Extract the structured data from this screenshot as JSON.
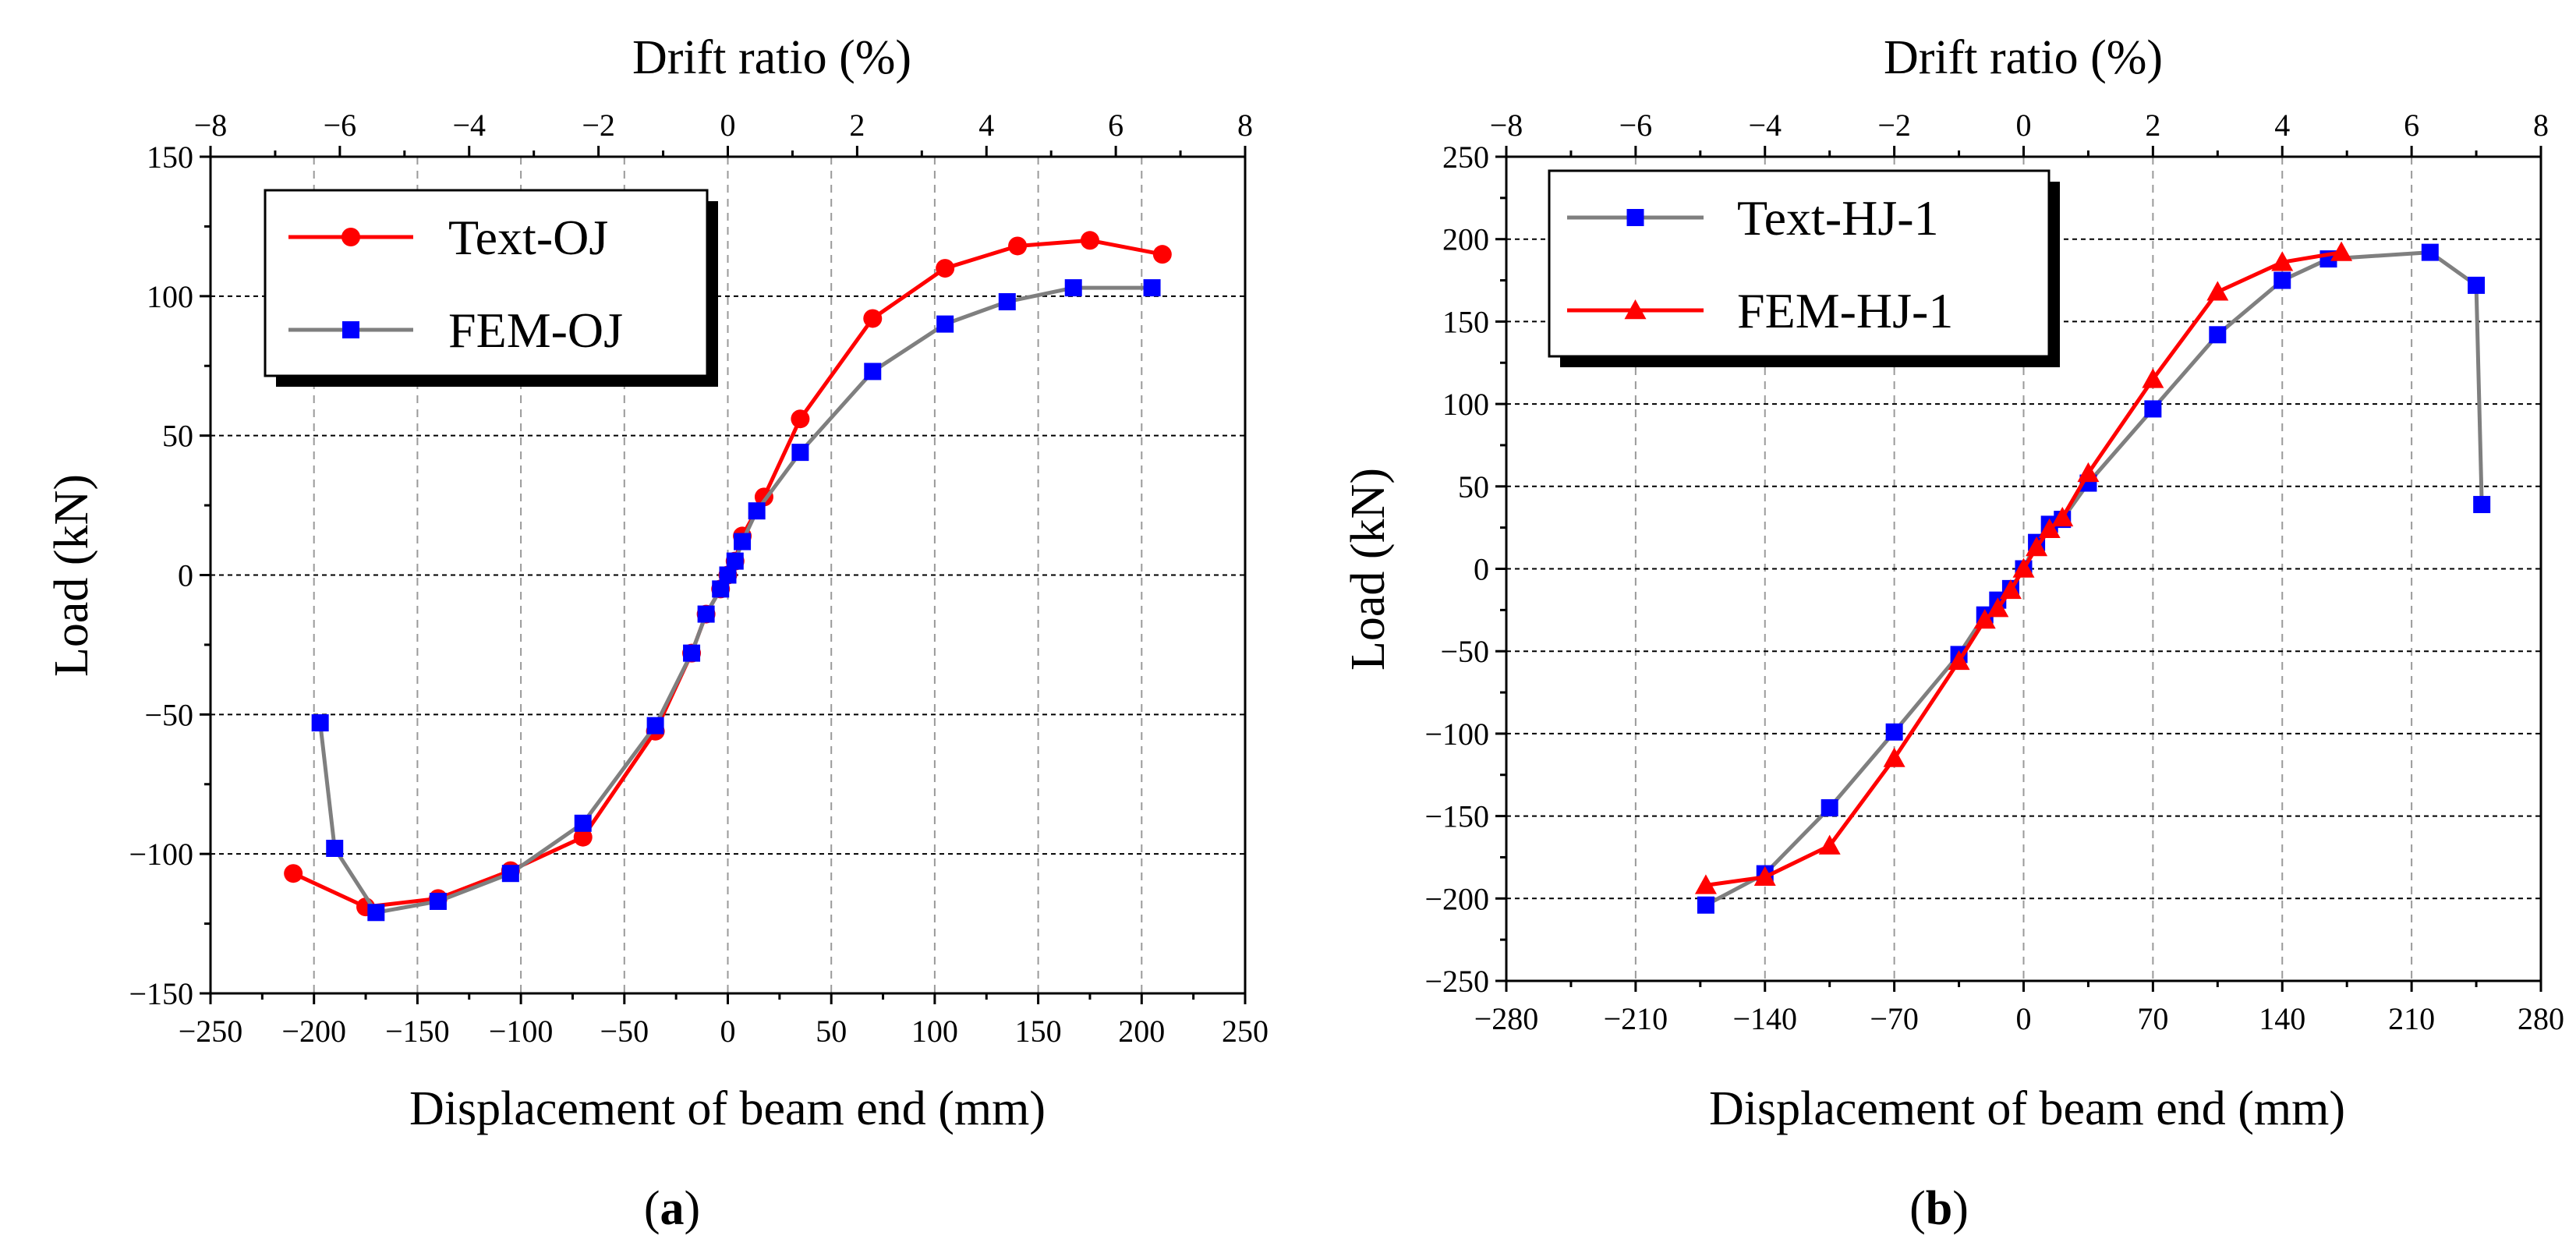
{
  "chart_data": [
    {
      "type": "line",
      "panel_label": "a",
      "title": "",
      "xlabel": "Displacement of beam end (mm)",
      "ylabel": "Load (kN)",
      "x2label": "Drift ratio (%)",
      "xlim": [
        -250,
        250
      ],
      "ylim": [
        -150,
        150
      ],
      "x2lim": [
        -8,
        8
      ],
      "xticks": [
        -250,
        -200,
        -150,
        -100,
        -50,
        0,
        50,
        100,
        150,
        200,
        250
      ],
      "xtick_labels": [
        "−250",
        "−200",
        "−150",
        "−100",
        "−50",
        "0",
        "50",
        "100",
        "150",
        "200",
        "250"
      ],
      "yticks": [
        -150,
        -100,
        -50,
        0,
        50,
        100,
        150
      ],
      "ytick_labels": [
        "−150",
        "−100",
        "−50",
        "0",
        "50",
        "100",
        "150"
      ],
      "x2ticks": [
        -8,
        -6,
        -4,
        -2,
        0,
        2,
        4,
        6,
        8
      ],
      "x2tick_labels": [
        "−8",
        "−6",
        "−4",
        "−2",
        "0",
        "2",
        "4",
        "6",
        "8"
      ],
      "grid": true,
      "legend_position": "top-left",
      "series": [
        {
          "name": "Text-OJ",
          "color": "#ff0000",
          "marker": "circle",
          "x": [
            -210,
            -175,
            -140,
            -105,
            -70,
            -35,
            -17.5,
            -10.5,
            -3.5,
            0,
            3.5,
            7,
            17.5,
            35,
            70,
            105,
            140,
            175,
            210
          ],
          "y": [
            -107,
            -119,
            -116,
            -106,
            -94,
            -56,
            -28,
            -14,
            -5,
            0,
            5,
            14,
            28,
            56,
            92,
            110,
            118,
            120,
            115
          ]
        },
        {
          "name": "FEM-OJ",
          "color": "#7f7f7f",
          "marker_color": "#0000ff",
          "marker": "square",
          "x": [
            -197,
            -190,
            -170,
            -140,
            -105,
            -70,
            -35,
            -17.5,
            -10.5,
            -3.5,
            0,
            3.5,
            7,
            14,
            35,
            70,
            105,
            135,
            167,
            205
          ],
          "y": [
            -53,
            -98,
            -121,
            -117,
            -107,
            -89,
            -54,
            -28,
            -14,
            -5,
            0,
            5,
            12,
            23,
            44,
            73,
            90,
            98,
            103,
            103
          ]
        }
      ]
    },
    {
      "type": "line",
      "panel_label": "b",
      "title": "",
      "xlabel": "Displacement of beam end (mm)",
      "ylabel": "Load (kN)",
      "x2label": "Drift ratio (%)",
      "xlim": [
        -280,
        280
      ],
      "ylim": [
        -250,
        250
      ],
      "x2lim": [
        -8,
        8
      ],
      "xticks": [
        -280,
        -210,
        -140,
        -70,
        0,
        70,
        140,
        210,
        280
      ],
      "xtick_labels": [
        "−280",
        "−210",
        "−140",
        "−70",
        "0",
        "70",
        "140",
        "210",
        "280"
      ],
      "yticks": [
        -250,
        -200,
        -150,
        -100,
        -50,
        0,
        50,
        100,
        150,
        200,
        250
      ],
      "ytick_labels": [
        "−250",
        "−200",
        "−150",
        "−100",
        "−50",
        "0",
        "50",
        "100",
        "150",
        "200",
        "250"
      ],
      "x2ticks": [
        -8,
        -6,
        -4,
        -2,
        0,
        2,
        4,
        6,
        8
      ],
      "x2tick_labels": [
        "−8",
        "−6",
        "−4",
        "−2",
        "0",
        "2",
        "4",
        "6",
        "8"
      ],
      "grid": true,
      "legend_position": "top-left",
      "series": [
        {
          "name": "Text-HJ-1",
          "color": "#7f7f7f",
          "marker_color": "#0000ff",
          "marker": "square",
          "x": [
            -172,
            -140,
            -105,
            -70,
            -35,
            -21,
            -14,
            -7,
            0,
            7,
            14,
            21,
            35,
            70,
            105,
            140,
            165,
            220,
            245,
            248
          ],
          "y": [
            -204,
            -185,
            -145,
            -99,
            -52,
            -28,
            -19,
            -12,
            0,
            16,
            27,
            30,
            52,
            97,
            142,
            175,
            188,
            192,
            172,
            39
          ]
        },
        {
          "name": "FEM-HJ-1",
          "color": "#ff0000",
          "marker": "triangle",
          "x": [
            -172,
            -140,
            -105,
            -70,
            -35,
            -21,
            -14,
            -7,
            0,
            7,
            14,
            21,
            35,
            70,
            105,
            140,
            172
          ],
          "y": [
            -192,
            -187,
            -168,
            -115,
            -56,
            -31,
            -24,
            -13,
            0,
            13,
            24,
            31,
            58,
            115,
            168,
            186,
            192
          ]
        }
      ]
    }
  ]
}
